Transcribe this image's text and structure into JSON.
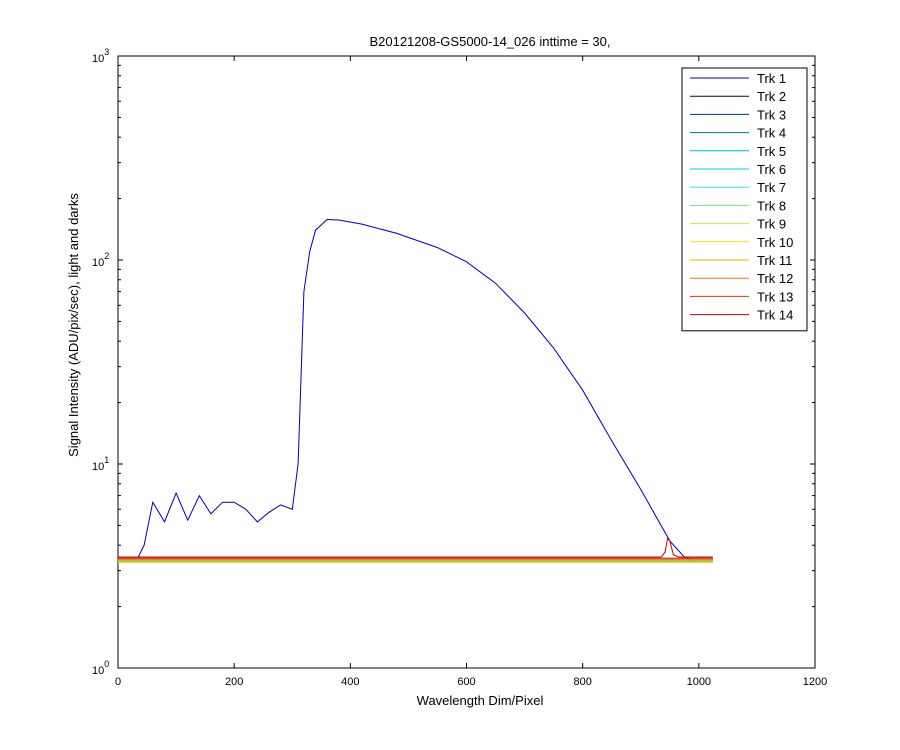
{
  "chart_data": {
    "type": "line",
    "title": "B20121208-GS5000-14_026 inttime = 30,",
    "xlabel": "Wavelength Dim/Pixel",
    "ylabel": "Signal Intensity (ADU/pix/sec), light and darks",
    "xlim": [
      0,
      1200
    ],
    "ylim": [
      1,
      1000
    ],
    "yscale": "log",
    "x_ticks": [
      "0",
      "200",
      "400",
      "600",
      "800",
      "1000",
      "1200"
    ],
    "x_tick_values": [
      0,
      200,
      400,
      600,
      800,
      1000,
      1200
    ],
    "y_ticks": [
      {
        "base": "10",
        "exp": "0",
        "value": 1
      },
      {
        "base": "10",
        "exp": "1",
        "value": 10
      },
      {
        "base": "10",
        "exp": "2",
        "value": 100
      },
      {
        "base": "10",
        "exp": "3",
        "value": 1000
      }
    ],
    "grid": false,
    "legend_position": "top-right",
    "series": [
      {
        "name": "Trk 1",
        "color": "#0000b4",
        "x": [
          0,
          20,
          35,
          45,
          60,
          80,
          100,
          120,
          140,
          160,
          180,
          200,
          220,
          240,
          260,
          280,
          300,
          310,
          320,
          330,
          340,
          360,
          380,
          420,
          480,
          550,
          600,
          650,
          700,
          750,
          800,
          850,
          900,
          950,
          975,
          985,
          1024
        ],
        "y": [
          3.5,
          3.5,
          3.5,
          4.0,
          6.5,
          5.2,
          7.2,
          5.3,
          7.0,
          5.7,
          6.5,
          6.5,
          6.0,
          5.2,
          5.8,
          6.3,
          6.0,
          10.0,
          70,
          110,
          140,
          158,
          157,
          150,
          135,
          115,
          98,
          77,
          55,
          37,
          23,
          13,
          7.5,
          4.2,
          3.5,
          3.4,
          3.4
        ]
      },
      {
        "name": "Trk 2",
        "color": "#000064",
        "x": [
          0,
          1024
        ],
        "y": [
          3.4,
          3.4
        ]
      },
      {
        "name": "Trk 3",
        "color": "#00327e",
        "x": [
          0,
          1024
        ],
        "y": [
          3.45,
          3.45
        ]
      },
      {
        "name": "Trk 4",
        "color": "#00758e",
        "x": [
          0,
          1024
        ],
        "y": [
          3.3,
          3.3
        ]
      },
      {
        "name": "Trk 5",
        "color": "#00b2c8",
        "x": [
          0,
          1024
        ],
        "y": [
          3.35,
          3.35
        ]
      },
      {
        "name": "Trk 6",
        "color": "#00d2d2",
        "x": [
          0,
          1024
        ],
        "y": [
          3.4,
          3.4
        ]
      },
      {
        "name": "Trk 7",
        "color": "#38e6e6",
        "x": [
          0,
          1024
        ],
        "y": [
          3.3,
          3.3
        ]
      },
      {
        "name": "Trk 8",
        "color": "#7ee07e",
        "x": [
          0,
          1024
        ],
        "y": [
          3.35,
          3.35
        ]
      },
      {
        "name": "Trk 9",
        "color": "#c8e650",
        "x": [
          0,
          1024
        ],
        "y": [
          3.4,
          3.4
        ]
      },
      {
        "name": "Trk 10",
        "color": "#e6e614",
        "x": [
          0,
          1024
        ],
        "y": [
          3.3,
          3.3
        ]
      },
      {
        "name": "Trk 11",
        "color": "#e6b400",
        "x": [
          0,
          1024
        ],
        "y": [
          3.35,
          3.35
        ]
      },
      {
        "name": "Trk 12",
        "color": "#f07814",
        "x": [
          0,
          1024
        ],
        "y": [
          3.4,
          3.4
        ]
      },
      {
        "name": "Trk 13",
        "color": "#e63214",
        "x": [
          0,
          1024
        ],
        "y": [
          3.45,
          3.45
        ]
      },
      {
        "name": "Trk 14",
        "color": "#c80000",
        "x": [
          0,
          900,
          935,
          942,
          946,
          950,
          956,
          965,
          1024
        ],
        "y": [
          3.5,
          3.5,
          3.5,
          3.7,
          4.3,
          4.2,
          3.6,
          3.5,
          3.5
        ]
      }
    ]
  }
}
